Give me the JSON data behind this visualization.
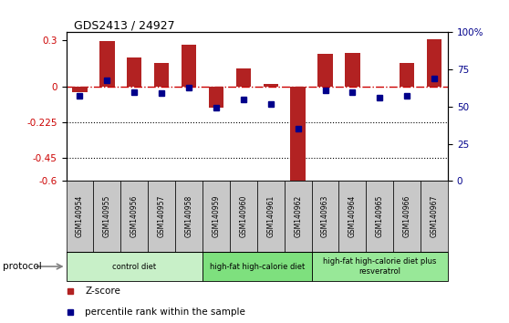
{
  "title": "GDS2413 / 24927",
  "samples": [
    "GSM140954",
    "GSM140955",
    "GSM140956",
    "GSM140957",
    "GSM140958",
    "GSM140959",
    "GSM140960",
    "GSM140961",
    "GSM140962",
    "GSM140963",
    "GSM140964",
    "GSM140965",
    "GSM140966",
    "GSM140967"
  ],
  "zscore": [
    -0.03,
    0.295,
    0.19,
    0.155,
    0.27,
    -0.13,
    0.12,
    0.02,
    -0.61,
    0.21,
    0.22,
    0.005,
    0.155,
    0.305
  ],
  "percentile": [
    57,
    68,
    60,
    59,
    63,
    49,
    55,
    52,
    35,
    61,
    60,
    56,
    57,
    69
  ],
  "bar_color": "#b22222",
  "dot_color": "#00008b",
  "refline_color": "#cc0000",
  "hline_color": "#000000",
  "ylim": [
    -0.6,
    0.35
  ],
  "yticks_left": [
    -0.6,
    -0.45,
    -0.225,
    0.0,
    0.3
  ],
  "ytick_labels_left": [
    "-0.6",
    "-0.45",
    "-0.225",
    "0",
    "0.3"
  ],
  "yticks_right": [
    0,
    25,
    50,
    75,
    100
  ],
  "ytick_labels_right": [
    "0",
    "25",
    "50",
    "75",
    "100%"
  ],
  "hlines": [
    -0.225,
    -0.45
  ],
  "protocol_groups": [
    {
      "label": "control diet",
      "start": 0,
      "end": 5,
      "color": "#c8f0c8"
    },
    {
      "label": "high-fat high-calorie diet",
      "start": 5,
      "end": 9,
      "color": "#7ee07e"
    },
    {
      "label": "high-fat high-calorie diet plus\nresveratrol",
      "start": 9,
      "end": 14,
      "color": "#98e898"
    }
  ],
  "protocol_label": "protocol",
  "legend_items": [
    {
      "label": "Z-score",
      "color": "#b22222"
    },
    {
      "label": "percentile rank within the sample",
      "color": "#00008b"
    }
  ]
}
